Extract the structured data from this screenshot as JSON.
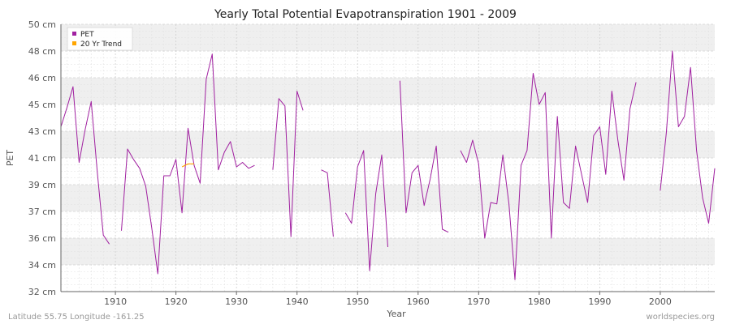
{
  "chart_data": {
    "type": "line",
    "title": "Yearly Total Potential Evapotranspiration 1901 - 2009",
    "xlabel": "Year",
    "ylabel": "PET",
    "xlim": [
      1901,
      2009
    ],
    "ylim": [
      32,
      50
    ],
    "x_ticks": [
      1910,
      1920,
      1930,
      1940,
      1950,
      1960,
      1970,
      1980,
      1990,
      2000
    ],
    "y_ticks": [
      {
        "value": 32,
        "label": "32 cm"
      },
      {
        "value": 33.8,
        "label": "34 cm"
      },
      {
        "value": 35.6,
        "label": "36 cm"
      },
      {
        "value": 37.4,
        "label": "37 cm"
      },
      {
        "value": 39.2,
        "label": "39 cm"
      },
      {
        "value": 41,
        "label": "41 cm"
      },
      {
        "value": 42.8,
        "label": "43 cm"
      },
      {
        "value": 44.6,
        "label": "45 cm"
      },
      {
        "value": 46.4,
        "label": "46 cm"
      },
      {
        "value": 48.2,
        "label": "48 cm"
      },
      {
        "value": 50,
        "label": "50 cm"
      }
    ],
    "legend_position": "top-left",
    "series": [
      {
        "name": "PET",
        "color": "#a020a0",
        "points": [
          [
            1901,
            43.1
          ],
          [
            1902,
            44.4
          ],
          [
            1903,
            45.8
          ],
          [
            1904,
            40.7
          ],
          [
            1905,
            42.9
          ],
          [
            1906,
            44.8
          ],
          [
            1907,
            40.1
          ],
          [
            1908,
            35.8
          ],
          [
            1909,
            35.2
          ],
          [
            1911,
            36.1
          ],
          [
            1912,
            41.6
          ],
          [
            1913,
            40.9
          ],
          [
            1914,
            40.3
          ],
          [
            1915,
            39.1
          ],
          [
            1916,
            36.3
          ],
          [
            1917,
            33.2
          ],
          [
            1918,
            39.8
          ],
          [
            1919,
            39.8
          ],
          [
            1920,
            40.9
          ],
          [
            1921,
            37.3
          ],
          [
            1922,
            43.0
          ],
          [
            1923,
            40.5
          ],
          [
            1924,
            39.3
          ],
          [
            1925,
            46.3
          ],
          [
            1926,
            48.0
          ],
          [
            1927,
            40.2
          ],
          [
            1928,
            41.4
          ],
          [
            1929,
            42.1
          ],
          [
            1930,
            40.4
          ],
          [
            1931,
            40.7
          ],
          [
            1932,
            40.3
          ],
          [
            1933,
            40.5
          ],
          [
            1936,
            40.2
          ],
          [
            1937,
            45.0
          ],
          [
            1938,
            44.5
          ],
          [
            1939,
            35.7
          ],
          [
            1940,
            45.5
          ],
          [
            1941,
            44.2
          ],
          [
            1944,
            40.2
          ],
          [
            1945,
            40.0
          ],
          [
            1946,
            35.7
          ],
          [
            1948,
            37.3
          ],
          [
            1949,
            36.6
          ],
          [
            1950,
            40.4
          ],
          [
            1951,
            41.5
          ],
          [
            1952,
            33.4
          ],
          [
            1953,
            38.6
          ],
          [
            1954,
            41.2
          ],
          [
            1955,
            35.0
          ],
          [
            1957,
            46.2
          ],
          [
            1958,
            37.3
          ],
          [
            1959,
            40.0
          ],
          [
            1960,
            40.5
          ],
          [
            1961,
            37.8
          ],
          [
            1962,
            39.6
          ],
          [
            1963,
            41.8
          ],
          [
            1964,
            36.2
          ],
          [
            1965,
            36.0
          ],
          [
            1967,
            41.5
          ],
          [
            1968,
            40.7
          ],
          [
            1969,
            42.2
          ],
          [
            1970,
            40.6
          ],
          [
            1971,
            35.6
          ],
          [
            1972,
            38.0
          ],
          [
            1973,
            37.9
          ],
          [
            1974,
            41.2
          ],
          [
            1975,
            37.9
          ],
          [
            1976,
            32.8
          ],
          [
            1977,
            40.5
          ],
          [
            1978,
            41.5
          ],
          [
            1979,
            46.7
          ],
          [
            1980,
            44.6
          ],
          [
            1981,
            45.4
          ],
          [
            1982,
            35.6
          ],
          [
            1983,
            43.8
          ],
          [
            1984,
            38.0
          ],
          [
            1985,
            37.6
          ],
          [
            1986,
            41.8
          ],
          [
            1987,
            39.9
          ],
          [
            1988,
            38.0
          ],
          [
            1989,
            42.5
          ],
          [
            1990,
            43.1
          ],
          [
            1991,
            39.9
          ],
          [
            1992,
            45.5
          ],
          [
            1993,
            42.2
          ],
          [
            1994,
            39.5
          ],
          [
            1995,
            44.3
          ],
          [
            1996,
            46.1
          ],
          [
            2000,
            38.8
          ],
          [
            2001,
            42.7
          ],
          [
            2002,
            48.2
          ],
          [
            2003,
            43.1
          ],
          [
            2004,
            43.8
          ],
          [
            2005,
            47.1
          ],
          [
            2006,
            41.5
          ],
          [
            2007,
            38.3
          ],
          [
            2008,
            36.6
          ],
          [
            2009,
            40.3
          ]
        ]
      },
      {
        "name": "20 Yr Trend",
        "color": "#ffa500",
        "points": [
          [
            1921,
            40.4
          ],
          [
            1922,
            40.6
          ],
          [
            1923,
            40.6
          ]
        ]
      }
    ]
  },
  "footer": {
    "location": "Latitude 55.75 Longitude -161.25",
    "watermark": "worldspecies.org"
  }
}
